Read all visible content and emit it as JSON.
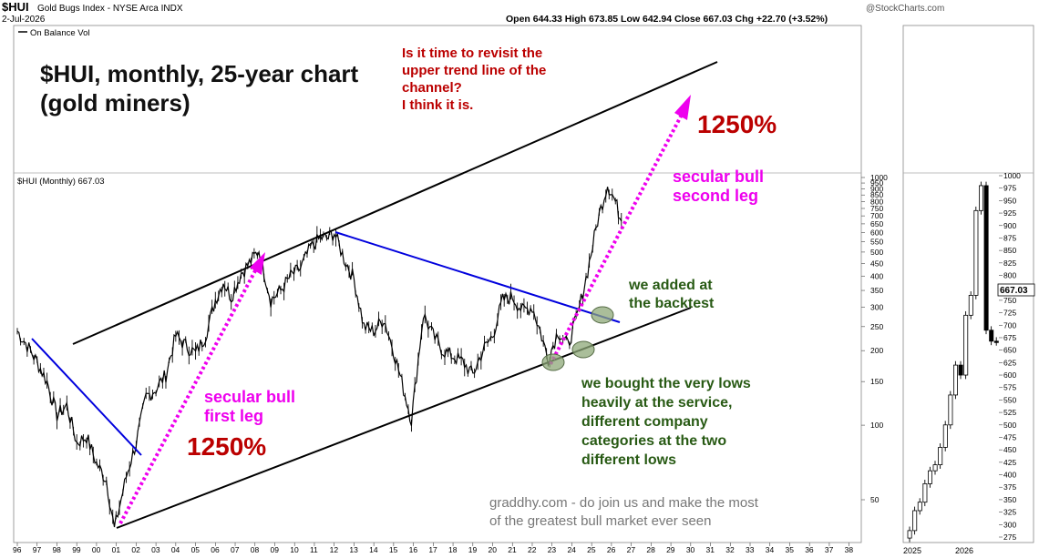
{
  "header": {
    "symbol": "$HUI",
    "name": "Gold Bugs Index - NYSE Arca INDX",
    "date": "2-Jul-2026",
    "watermark": "@StockCharts.com",
    "ohlc": "Open 644.33   High 673.85   Low 642.94   Close 667.03   Chg +22.70 (+3.52%)",
    "obv_label": "On Balance Vol",
    "price_label": "$HUI (Monthly) 667.03"
  },
  "annotations": {
    "title_line1": "$HUI, monthly, 25-year chart",
    "title_line2": "(gold miners)",
    "question_lines": [
      "Is it time to revisit the",
      "upper trend line of the",
      "channel?",
      "I think it is."
    ],
    "pct_top": "1250%",
    "pct_bottom": "1250%",
    "second_leg_lines": [
      "secular bull",
      "second leg"
    ],
    "first_leg_lines": [
      "secular bull",
      "first leg"
    ],
    "backtest_lines": [
      "we added at",
      "the backtest"
    ],
    "lows_lines": [
      "we bought the very lows",
      "heavily at the service,",
      "different company",
      "categories at the two",
      "different lows"
    ],
    "promo_lines": [
      "graddhy.com - do join us and make the most",
      "of the greatest bull market ever seen"
    ]
  },
  "chart_data": [
    {
      "type": "line",
      "title": "$HUI (Monthly) 667.03",
      "y_scale": "log",
      "y_ticks": [
        50,
        100,
        150,
        200,
        250,
        300,
        350,
        400,
        450,
        500,
        550,
        600,
        650,
        700,
        750,
        800,
        850,
        900,
        950,
        1000
      ],
      "x_ticks": [
        "96",
        "97",
        "98",
        "99",
        "00",
        "01",
        "02",
        "03",
        "04",
        "05",
        "06",
        "07",
        "08",
        "09",
        "10",
        "11",
        "12",
        "13",
        "14",
        "15",
        "16",
        "17",
        "18",
        "19",
        "20",
        "21",
        "22",
        "23",
        "24",
        "25",
        "26",
        "27",
        "28",
        "29",
        "30",
        "31",
        "32",
        "33",
        "34",
        "35",
        "36",
        "37",
        "38"
      ],
      "series": [
        {
          "x": [
            1996.0,
            1996.5,
            1997.0,
            1997.5,
            1998.0,
            1998.5,
            1999.0,
            1999.5,
            2000.0,
            2000.5,
            2000.9,
            2001.5,
            2002.0,
            2002.5,
            2003.0,
            2003.5,
            2004.0,
            2004.5,
            2005.0,
            2005.5,
            2006.0,
            2006.4,
            2006.8,
            2007.3,
            2007.8,
            2008.2,
            2008.8,
            2009.3,
            2009.8,
            2010.3,
            2010.8,
            2011.3,
            2011.7,
            2012.0,
            2012.5,
            2013.0,
            2013.5,
            2014.0,
            2014.5,
            2015.0,
            2015.5,
            2015.9,
            2016.5,
            2017.0,
            2017.5,
            2018.0,
            2018.5,
            2019.0,
            2019.5,
            2020.0,
            2020.5,
            2021.0,
            2021.5,
            2022.0,
            2022.4,
            2022.8,
            2023.3,
            2023.8,
            2024.3,
            2024.8,
            2025.3,
            2025.8,
            2026.2,
            2026.5
          ],
          "values": [
            240,
            210,
            180,
            150,
            110,
            120,
            85,
            90,
            70,
            60,
            38,
            62,
            85,
            130,
            140,
            160,
            230,
            210,
            195,
            230,
            320,
            380,
            330,
            410,
            460,
            510,
            320,
            350,
            400,
            430,
            520,
            570,
            570,
            600,
            470,
            390,
            250,
            240,
            270,
            200,
            140,
            105,
            280,
            230,
            200,
            190,
            180,
            160,
            200,
            230,
            320,
            330,
            290,
            300,
            240,
            185,
            240,
            210,
            280,
            420,
            670,
            940,
            800,
            667
          ]
        }
      ]
    },
    {
      "type": "bar",
      "title": "$HUI monthly (2025-2026 detail)",
      "y_ticks": [
        275,
        300,
        325,
        350,
        375,
        400,
        425,
        450,
        475,
        500,
        525,
        550,
        575,
        600,
        625,
        650,
        675,
        700,
        725,
        750,
        775,
        800,
        825,
        850,
        875,
        900,
        925,
        950,
        975,
        1000
      ],
      "x_ticks": [
        "2025",
        "2026"
      ],
      "last_value": "667.03",
      "closes": [
        288,
        328,
        345,
        382,
        408,
        420,
        455,
        500,
        560,
        620,
        600,
        720,
        760,
        930,
        980,
        690,
        668,
        667
      ]
    }
  ],
  "colors": {
    "blue_line": "#0000dd",
    "magenta": "#ee00ee",
    "dark_red": "#bb0000",
    "dark_green": "#285a14",
    "gray_text": "#777777",
    "price": "#000000"
  }
}
